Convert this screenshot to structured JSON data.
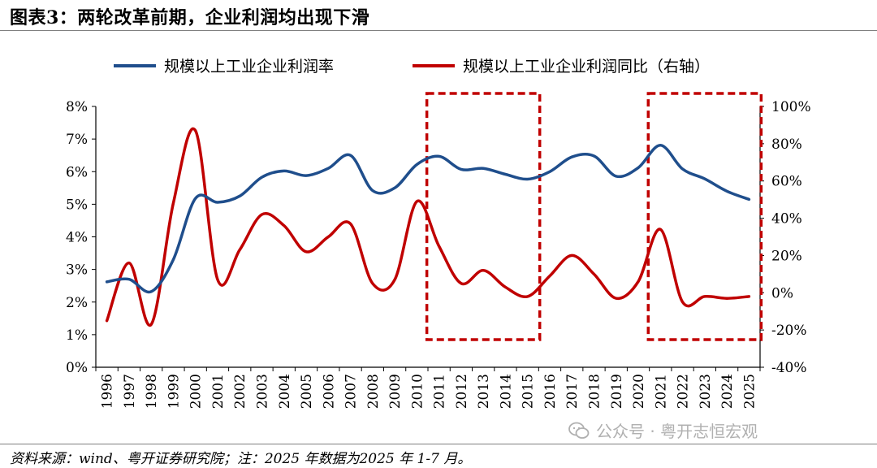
{
  "title": "图表3：两轮改革前期，企业利润均出现下滑",
  "source": "资料来源：wind、粤开证券研究院；注：2025 年数据为2025 年 1-7 月。",
  "watermark": "公众号 · 粤开志恒宏观",
  "chart_data": {
    "type": "line",
    "x": [
      "1996",
      "1997",
      "1998",
      "1999",
      "2000",
      "2001",
      "2002",
      "2003",
      "2004",
      "2005",
      "2006",
      "2007",
      "2008",
      "2009",
      "2010",
      "2011",
      "2012",
      "2013",
      "2014",
      "2015",
      "2016",
      "2017",
      "2018",
      "2019",
      "2020",
      "2021",
      "2022",
      "2023",
      "2024",
      "2025"
    ],
    "series": [
      {
        "name": "规模以上工业企业利润率",
        "axis": "left",
        "color": "#1f4e8c",
        "values": [
          2.62,
          2.7,
          2.32,
          3.3,
          5.18,
          5.06,
          5.25,
          5.83,
          6.02,
          5.88,
          6.1,
          6.5,
          5.42,
          5.5,
          6.22,
          6.47,
          6.07,
          6.1,
          5.92,
          5.77,
          6.0,
          6.45,
          6.48,
          5.86,
          6.12,
          6.81,
          6.08,
          5.78,
          5.4,
          5.15
        ]
      },
      {
        "name": "规模以上工业企业利润同比（右轴）",
        "axis": "right",
        "color": "#c00000",
        "values": [
          -15,
          16,
          -17,
          48,
          87,
          7,
          23,
          42,
          36,
          22,
          30,
          37,
          5,
          7,
          49,
          25,
          5,
          12,
          3,
          -2,
          9,
          20,
          10,
          -3,
          6,
          34,
          -5,
          -2,
          -3,
          -2
        ]
      }
    ],
    "y_left": {
      "ticks": [
        "0%",
        "1%",
        "2%",
        "3%",
        "4%",
        "5%",
        "6%",
        "7%",
        "8%"
      ],
      "min": 0,
      "max": 8
    },
    "y_right": {
      "ticks": [
        "-40%",
        "-20%",
        "0%",
        "20%",
        "40%",
        "60%",
        "80%",
        "100%"
      ],
      "min": -40,
      "max": 100
    },
    "highlight_ranges": [
      [
        "2011",
        "2015"
      ],
      [
        "2021",
        "2025"
      ]
    ],
    "highlight_color": "#c00000",
    "legend_position": "top-center"
  }
}
